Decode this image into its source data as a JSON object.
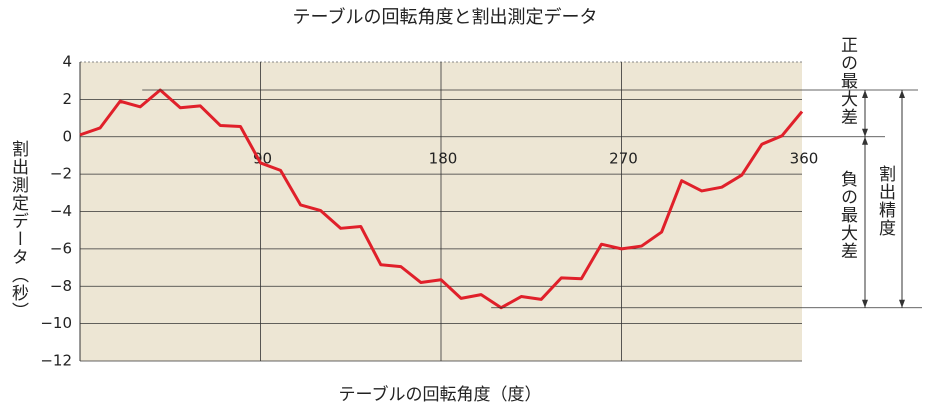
{
  "chart_data": {
    "type": "line",
    "title": "テーブルの回転角度と割出測定データ",
    "x_label": "テーブルの回転角度（度）",
    "y_label": "割出測定データ（秒）",
    "annotations": [
      "正の最大差",
      "負の最大差",
      "割出精度"
    ],
    "x": [
      0,
      10,
      20,
      30,
      40,
      50,
      60,
      70,
      80,
      90,
      100,
      110,
      120,
      130,
      140,
      150,
      160,
      170,
      180,
      190,
      200,
      210,
      220,
      230,
      240,
      250,
      260,
      270,
      280,
      290,
      300,
      310,
      320,
      330,
      340,
      350,
      360
    ],
    "series": [
      {
        "name": "割出測定データ",
        "color": "#e0202a",
        "values": [
          0.1,
          0.47,
          1.9,
          1.6,
          2.5,
          1.55,
          1.65,
          0.6,
          0.55,
          -1.4,
          -1.8,
          -3.65,
          -3.95,
          -4.9,
          -4.8,
          -6.85,
          -6.95,
          -7.8,
          -7.65,
          -8.65,
          -8.45,
          -9.15,
          -8.55,
          -8.7,
          -7.55,
          -7.6,
          -5.75,
          -6.0,
          -5.85,
          -5.1,
          -2.35,
          -2.9,
          -2.7,
          -2.05,
          -0.4,
          0.05,
          1.35
        ]
      }
    ],
    "xlim": [
      0,
      360
    ],
    "xticks": [
      90,
      180,
      270,
      360
    ],
    "ylim": [
      -12,
      4
    ],
    "yticks": [
      4,
      2,
      0,
      {
        "value": -2,
        "label": "−2"
      },
      {
        "value": -4,
        "label": "−4"
      },
      {
        "value": -6,
        "label": "−6"
      },
      {
        "value": -8,
        "label": "−8"
      },
      {
        "value": -10,
        "label": "−10"
      },
      {
        "value": -12,
        "label": "−12"
      }
    ],
    "grid": true
  }
}
